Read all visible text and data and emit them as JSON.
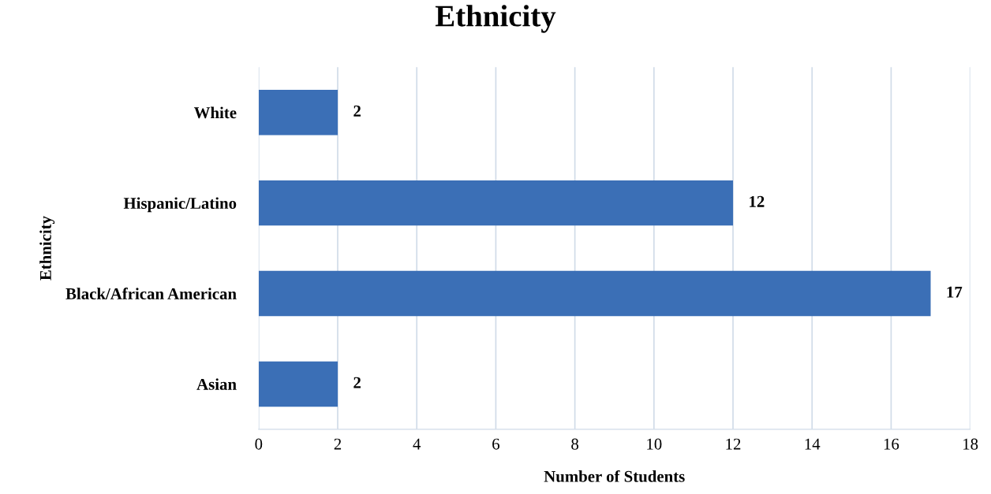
{
  "chart_data": {
    "type": "bar",
    "orientation": "horizontal",
    "title": "Ethnicity",
    "xlabel": "Number of Students",
    "ylabel": "Ethnicity",
    "categories": [
      "White",
      "Hispanic/Latino",
      "Black/African American",
      "Asian"
    ],
    "values": [
      2,
      12,
      17,
      2
    ],
    "color": "#3b6fb6",
    "xlim": [
      0,
      18
    ],
    "xticks": [
      0,
      2,
      4,
      6,
      8,
      10,
      12,
      14,
      16,
      18
    ],
    "grid": "x",
    "data_labels": true
  }
}
